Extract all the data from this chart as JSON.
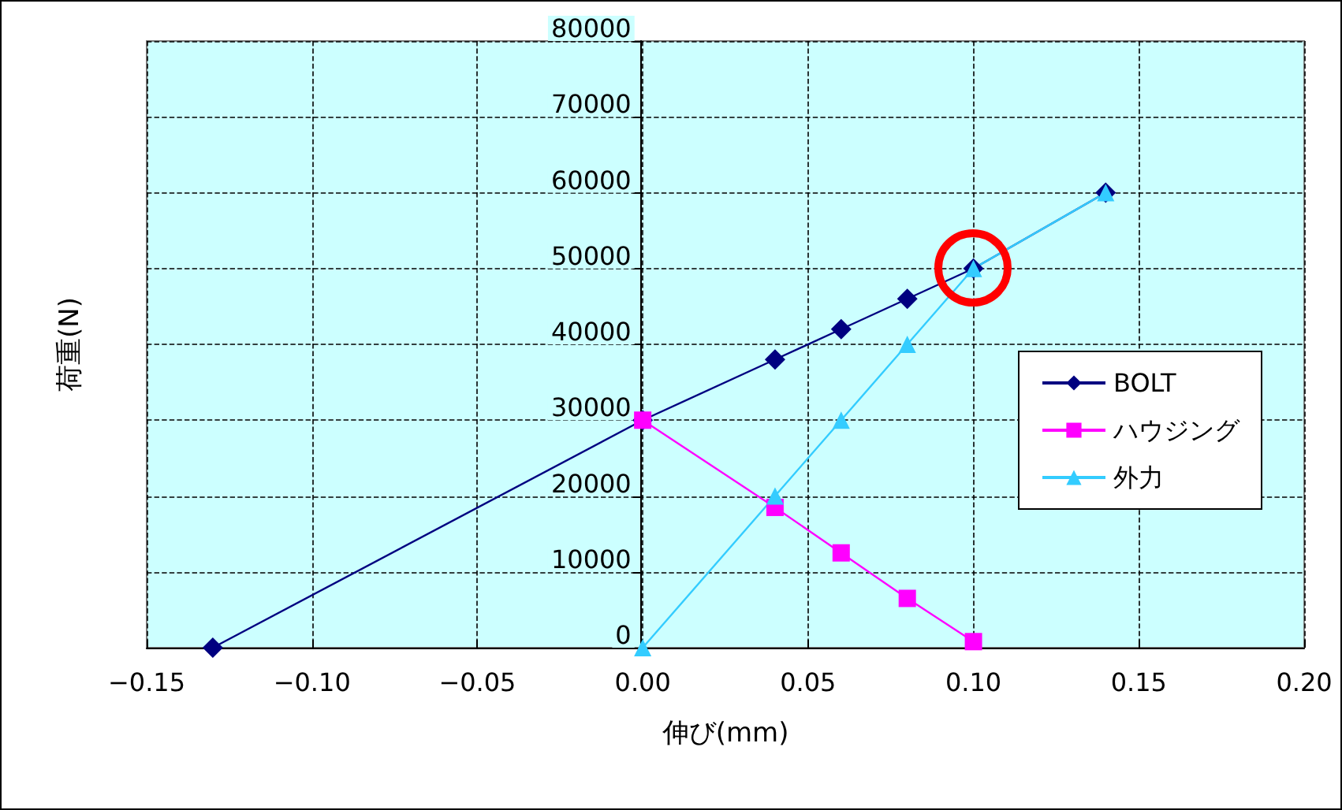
{
  "chart_data": {
    "type": "line",
    "xlabel": "伸び(mm)",
    "ylabel": "荷重(N)",
    "xlim": [
      -0.15,
      0.2
    ],
    "xticks": [
      {
        "value": -0.15,
        "label": "−0.15"
      },
      {
        "value": -0.1,
        "label": "−0.10"
      },
      {
        "value": -0.05,
        "label": "−0.05"
      },
      {
        "value": 0,
        "label": "0.00"
      },
      {
        "value": 0.05,
        "label": "0.05"
      },
      {
        "value": 0.1,
        "label": "0.10"
      },
      {
        "value": 0.15,
        "label": "0.15"
      },
      {
        "value": 0.2,
        "label": "0.20"
      }
    ],
    "ylim": [
      0,
      80000
    ],
    "yticks": [
      0,
      10000,
      20000,
      30000,
      40000,
      50000,
      60000,
      70000,
      80000
    ],
    "grid": true,
    "legend": "right",
    "line_style": "solid",
    "series": [
      {
        "name": "BOLT",
        "color": "#000080",
        "marker": "diamond",
        "x": [
          -0.13,
          0,
          0.04,
          0.06,
          0.08,
          0.1,
          0.14
        ],
        "values": [
          0,
          30000,
          38000,
          42000,
          46000,
          50000,
          60000
        ]
      },
      {
        "name": "ハウジング",
        "color": "#ff00ff",
        "marker": "square",
        "x": [
          0,
          0.04,
          0.06,
          0.08,
          0.1
        ],
        "values": [
          30000,
          18500,
          12500,
          6500,
          800
        ]
      },
      {
        "name": "外力",
        "color": "#33ccff",
        "marker": "triangle",
        "x": [
          0,
          0.04,
          0.06,
          0.08,
          0.1,
          0.14
        ],
        "values": [
          0,
          20000,
          30000,
          40000,
          50000,
          60000
        ]
      }
    ]
  }
}
